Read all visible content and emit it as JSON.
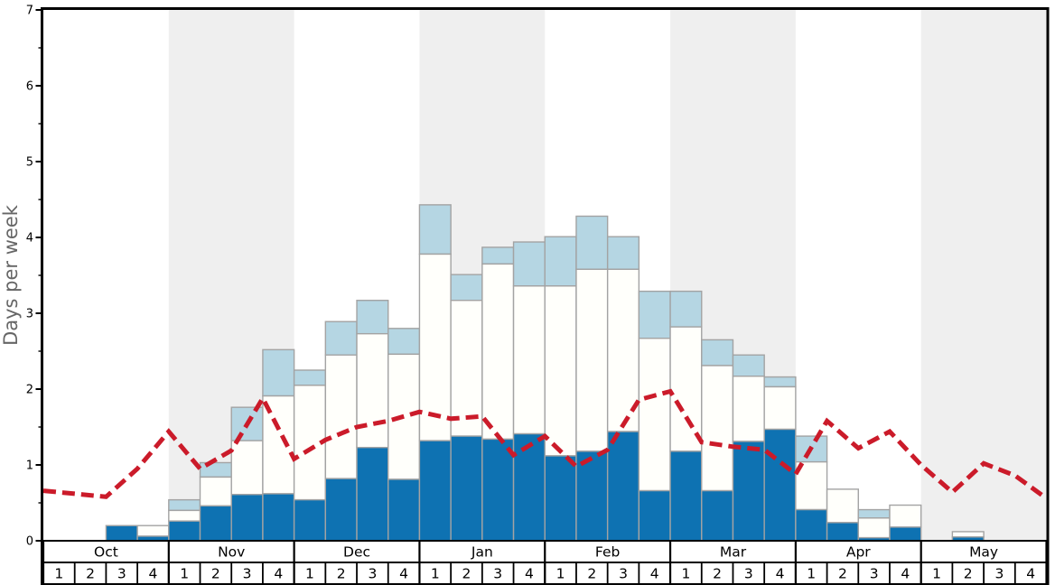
{
  "chart_data": {
    "type": "bar",
    "title": "",
    "ylabel": "Days per week",
    "xlabel": "",
    "ylim": [
      0,
      7
    ],
    "y_major_ticks": [
      0,
      1,
      2,
      3,
      4,
      5,
      6,
      7
    ],
    "y_minor_tick_step": 0.5,
    "grid": false,
    "legend_position": "none",
    "months": [
      "Oct",
      "Nov",
      "Dec",
      "Jan",
      "Feb",
      "Mar",
      "Apr",
      "May"
    ],
    "week_labels": [
      "1",
      "2",
      "3",
      "4"
    ],
    "weeks_per_month": 4,
    "shaded_month_indices": [
      1,
      3,
      5,
      7
    ],
    "series": [
      {
        "name": "dark_blue_days",
        "role": "stacked-bar-bottom-segment",
        "color": "#0e72b2",
        "cumulative_tops": [
          0,
          0,
          0.2,
          0.06,
          0.26,
          0.46,
          0.61,
          0.62,
          0.54,
          0.82,
          1.23,
          0.81,
          1.32,
          1.38,
          1.34,
          1.41,
          1.12,
          1.18,
          1.44,
          0.66,
          1.18,
          0.66,
          1.31,
          1.47,
          0.41,
          0.24,
          0.04,
          0.18,
          0,
          0.05,
          0,
          0
        ]
      },
      {
        "name": "white_days",
        "role": "stacked-bar-middle-segment",
        "color": "#fffffb",
        "cumulative_tops": [
          0,
          0,
          0.2,
          0.2,
          0.4,
          0.84,
          1.32,
          1.91,
          2.05,
          2.45,
          2.73,
          2.46,
          3.78,
          3.17,
          3.65,
          3.36,
          3.36,
          3.58,
          3.58,
          2.67,
          2.82,
          2.31,
          2.17,
          2.03,
          1.04,
          0.68,
          0.3,
          0.47,
          0,
          0.12,
          0,
          0
        ]
      },
      {
        "name": "light_blue_days",
        "role": "stacked-bar-top-segment",
        "color": "#b5d6e3",
        "cumulative_tops": [
          0,
          0,
          0.2,
          0.2,
          0.54,
          1.03,
          1.76,
          2.52,
          2.25,
          2.89,
          3.17,
          2.8,
          4.43,
          3.51,
          3.87,
          3.94,
          4.01,
          4.28,
          4.01,
          3.29,
          3.29,
          2.65,
          2.45,
          2.16,
          1.38,
          0.68,
          0.41,
          0.47,
          0,
          0.12,
          0,
          0
        ]
      }
    ],
    "line_series": {
      "name": "red_dashed_trend",
      "color": "#cb1b2a",
      "style": "dashed",
      "x_mode": "week-boundaries (33 vertices spanning 32 weeks)",
      "values": [
        0.66,
        0.62,
        0.58,
        0.95,
        1.44,
        0.95,
        1.19,
        1.88,
        1.08,
        1.33,
        1.5,
        1.58,
        1.7,
        1.61,
        1.64,
        1.13,
        1.38,
        0.98,
        1.2,
        1.86,
        1.97,
        1.3,
        1.24,
        1.2,
        0.88,
        1.58,
        1.22,
        1.44,
        1.0,
        0.64,
        1.02,
        0.86,
        0.56
      ]
    }
  },
  "colors": {
    "background": "#ffffff",
    "month_shade": "#efefef",
    "bar_border": "#a3a3a3",
    "axis_line": "#000000",
    "band_line": "#000000",
    "tick_label": "#000000",
    "month_label": "#000000",
    "week_label": "#000000",
    "ylabel_text": "#666666"
  }
}
